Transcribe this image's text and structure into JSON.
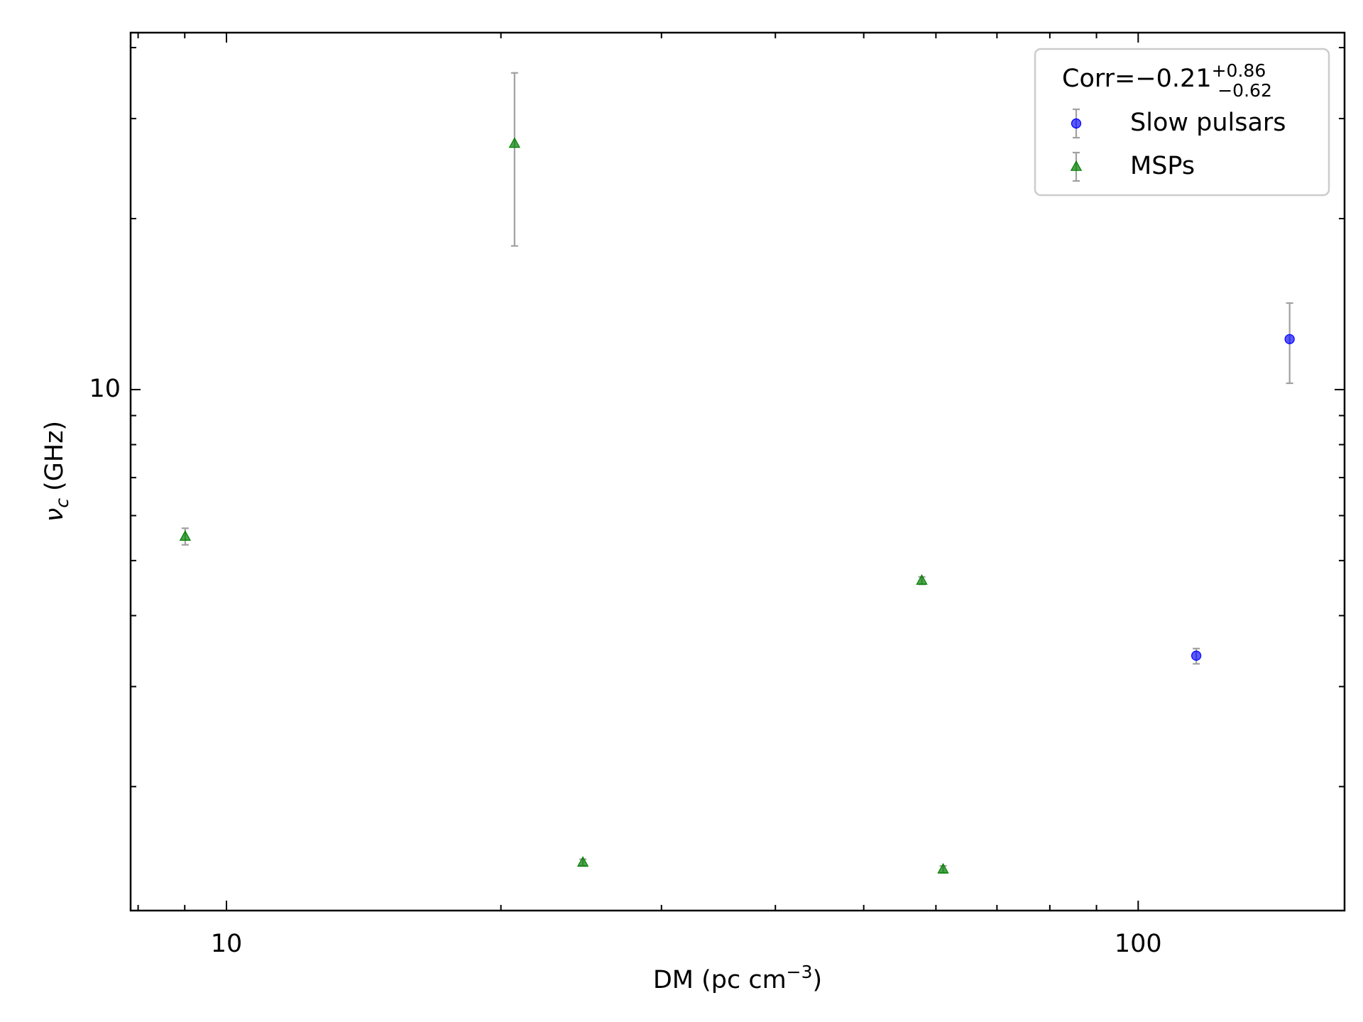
{
  "chart_data": {
    "type": "scatter",
    "xlabel": {
      "text": "DM (pc cm",
      "sup": "−3",
      "end": ")"
    },
    "ylabel": {
      "symbol": "ν",
      "sub": "c",
      "unit": "(GHz)"
    },
    "legend_title": {
      "text": "Corr=−0.21",
      "sup": "+0.86",
      "sub": "−0.62"
    },
    "legend": "upper right",
    "xscale": "log",
    "yscale": "log",
    "xlim": [
      7.85,
      168.4
    ],
    "ylim": [
      1.21,
      42.5
    ],
    "xticks": [
      10,
      100
    ],
    "yticks": [
      10
    ],
    "xminorticks": [
      8,
      9,
      20,
      30,
      40,
      50,
      60,
      70,
      80,
      90
    ],
    "yminorticks": [
      2,
      3,
      4,
      5,
      6,
      7,
      8,
      9,
      20,
      30,
      40
    ],
    "error_color": "#a0a0a0",
    "series": [
      {
        "name": "Slow pulsars",
        "color": "#0000ff",
        "marker": "circle",
        "x": [
          115.8,
          146.6
        ],
        "values": [
          3.4,
          12.27
        ],
        "yerr_plus": [
          0.1,
          1.93
        ],
        "yerr_minus": [
          0.11,
          2.01
        ]
      },
      {
        "name": "MSPs",
        "color": "#008000",
        "marker": "triangle",
        "x": [
          9.01,
          20.7,
          24.6,
          57.9,
          61.1
        ],
        "values": [
          5.51,
          27.1,
          1.47,
          4.61,
          1.43
        ],
        "yerr_plus": [
          0.19,
          9.0,
          0.02,
          0.07,
          0.02
        ],
        "yerr_minus": [
          0.18,
          9.2,
          0.02,
          0.07,
          0.02
        ]
      }
    ]
  }
}
